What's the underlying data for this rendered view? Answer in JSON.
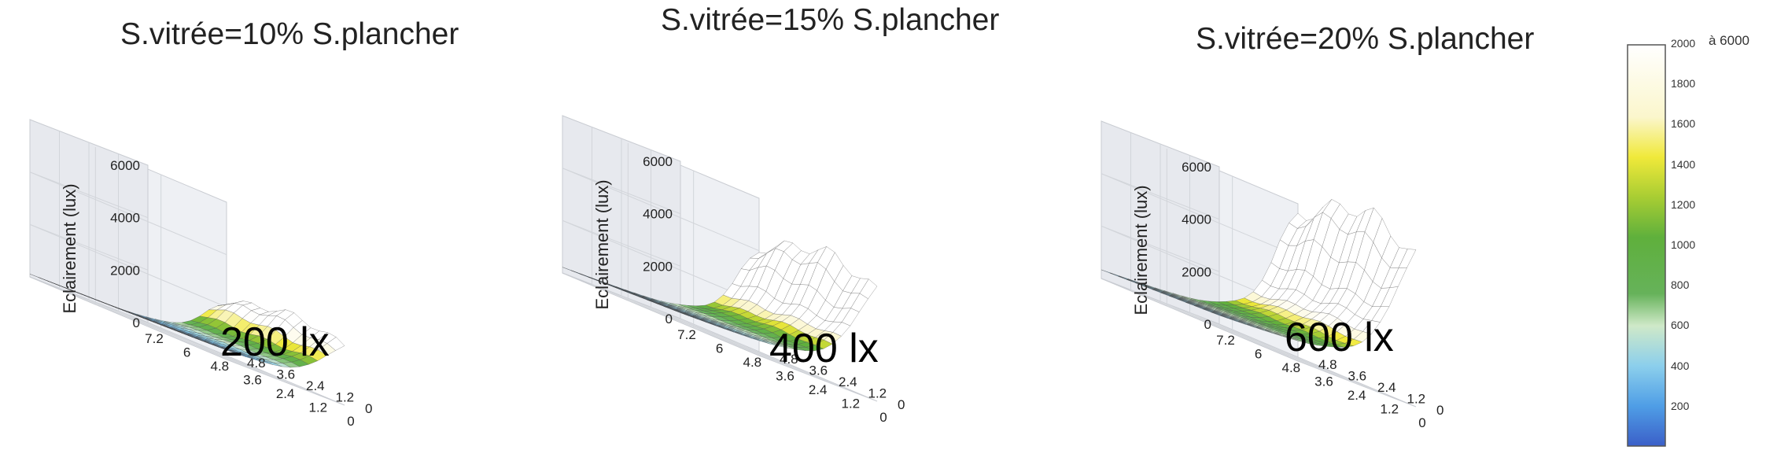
{
  "chart_data": [
    {
      "type": "surface",
      "title": "S.vitrée=10% S.plancher",
      "zlabel": "Eclairement (lux)",
      "overlay_label": "200 lx",
      "z_ticks": [
        "0",
        "2000",
        "4000",
        "6000"
      ],
      "x_ticks": [
        "7.2",
        "6",
        "4.8",
        "3.6",
        "2.4",
        "1.2",
        "0"
      ],
      "y_ticks": [
        "0",
        "1.2",
        "2.4",
        "3.6",
        "4.8"
      ],
      "zlim": [
        0,
        6000
      ],
      "peak_lux": 3000
    },
    {
      "type": "surface",
      "title": "S.vitrée=15% S.plancher",
      "zlabel": "Eclairement (lux)",
      "overlay_label": "400 lx",
      "z_ticks": [
        "0",
        "2000",
        "4000",
        "6000"
      ],
      "x_ticks": [
        "7.2",
        "6",
        "4.8",
        "3.6",
        "2.4",
        "1.2",
        "0"
      ],
      "y_ticks": [
        "0",
        "1.2",
        "2.4",
        "3.6",
        "4.8"
      ],
      "zlim": [
        0,
        6000
      ],
      "peak_lux": 5500
    },
    {
      "type": "surface",
      "title": "S.vitrée=20% S.plancher",
      "zlabel": "Eclairement (lux)",
      "overlay_label": "600 lx",
      "z_ticks": [
        "0",
        "2000",
        "4000",
        "6000"
      ],
      "x_ticks": [
        "7.2",
        "6",
        "4.8",
        "3.6",
        "2.4",
        "1.2",
        "0"
      ],
      "y_ticks": [
        "0",
        "1.2",
        "2.4",
        "3.6",
        "4.8"
      ],
      "zlim": [
        0,
        6000
      ],
      "peak_lux": 7400
    }
  ],
  "colorbar": {
    "ticks": [
      "200",
      "400",
      "600",
      "800",
      "1000",
      "1200",
      "1400",
      "1600",
      "1800",
      "2000"
    ],
    "top_extra": "à 6000",
    "range": [
      0,
      2000
    ],
    "colors": [
      "#3b5fc8",
      "#4f9ee6",
      "#9ed6ea",
      "#66b25a",
      "#9cc93a",
      "#f0e93a",
      "#fbf6cc",
      "#ffffff"
    ]
  }
}
